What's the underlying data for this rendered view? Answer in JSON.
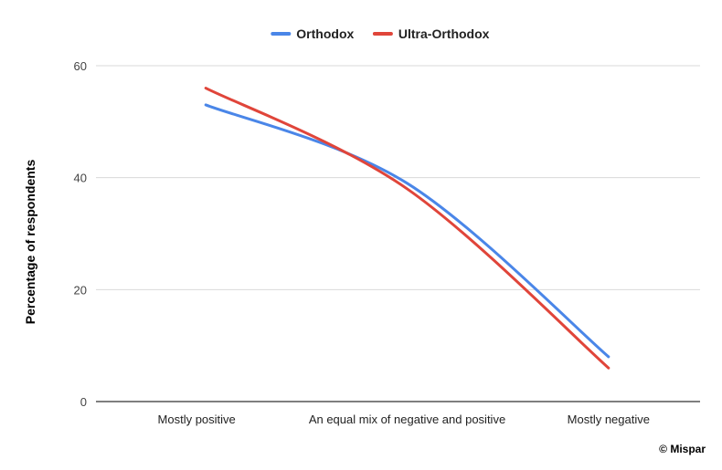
{
  "chart_data": {
    "type": "line",
    "title": "",
    "xlabel": "",
    "ylabel": "Percentage of respondents",
    "categories": [
      "Mostly positive",
      "An equal mix of negative and positive",
      "Mostly negative"
    ],
    "series": [
      {
        "name": "Orthodox",
        "values": [
          53,
          39,
          8
        ],
        "color": "#4a86e8"
      },
      {
        "name": "Ultra-Orthodox",
        "values": [
          56,
          38,
          6
        ],
        "color": "#e0453a"
      }
    ],
    "ylim": [
      0,
      60
    ],
    "yticks": [
      0,
      20,
      40,
      60
    ],
    "grid": true,
    "legend": "top-center"
  },
  "credit": "© Mispar"
}
